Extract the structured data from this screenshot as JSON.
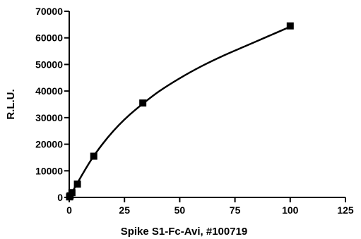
{
  "chart_data": {
    "type": "scatter",
    "xlabel": "Spike S1-Fc-Avi, #100719",
    "ylabel": "R.L.U.",
    "xlim": [
      0,
      125
    ],
    "ylim": [
      0,
      70000
    ],
    "x_ticks": [
      0,
      25,
      50,
      75,
      100,
      125
    ],
    "y_ticks": [
      0,
      10000,
      20000,
      30000,
      40000,
      50000,
      60000,
      70000
    ],
    "grid": false,
    "legend": "none",
    "series": [
      {
        "marker": "square",
        "color": "#000000",
        "x": [
          0.14,
          0.41,
          1.23,
          3.7,
          11.1,
          33.3,
          100
        ],
        "y": [
          200,
          600,
          1800,
          5000,
          15500,
          35500,
          64500
        ]
      }
    ],
    "fit_curve": {
      "type": "smooth",
      "x": [
        0,
        5,
        10,
        15,
        20,
        25,
        30,
        40,
        50,
        60,
        70,
        80,
        90,
        100
      ],
      "y": [
        0,
        7300,
        14200,
        20000,
        25000,
        29300,
        33000,
        39500,
        44800,
        49400,
        53400,
        57000,
        60600,
        64200
      ]
    }
  }
}
